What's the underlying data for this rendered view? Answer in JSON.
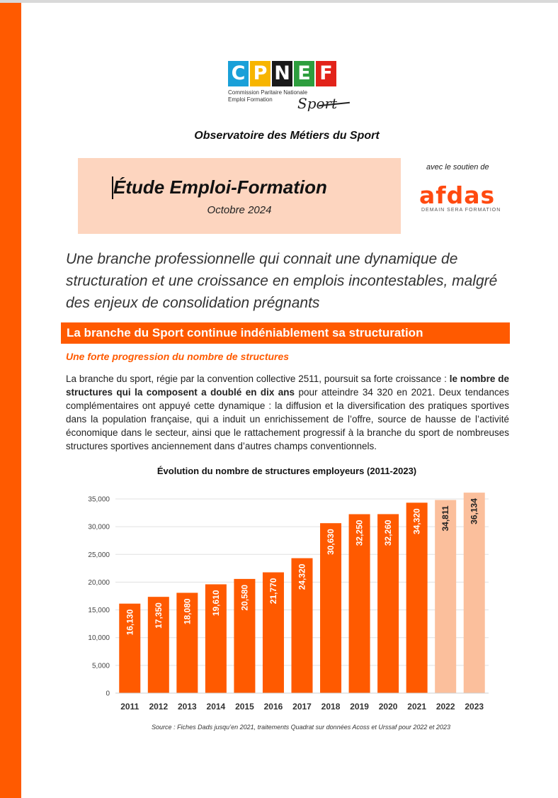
{
  "logo": {
    "letters": [
      "C",
      "P",
      "N",
      "E",
      "F"
    ],
    "tile_colors": [
      "#1aa0d8",
      "#f7b500",
      "#1a1a1a",
      "#2e9e3e",
      "#e2231a"
    ],
    "subtitle_line1": "Commission Paritaire Nationale",
    "subtitle_line2": "Emploi Formation",
    "sport": "Sport"
  },
  "observatoire": "Observatoire des Métiers du Sport",
  "title_box": {
    "title": "Étude Emploi-Formation",
    "date": "Octobre 2024"
  },
  "support": {
    "label": "avec le soutien de",
    "brand": "AFDAS",
    "tagline": "DEMAIN SERA FORMATION"
  },
  "headline": "Une branche professionnelle qui connait une dynamique de structuration et une croissance en emplois incontestables, malgré des enjeux de consolidation prégnants",
  "section_title": "La branche du Sport continue indéniablement sa structuration",
  "subhead": "Une forte progression du nombre de structures",
  "body": {
    "part1": "La branche du sport, régie par la convention collective 2511, poursuit sa forte croissance : ",
    "bold": "le nombre de structures qui la composent a doublé en dix ans",
    "part2": " pour atteindre 34 320 en 2021. Deux tendances complémentaires ont appuyé cette dynamique : la diffusion et la diversification des pratiques sportives dans la population française, qui a induit un enrichissement de l’offre, source de hausse de l’activité économique dans le secteur, ainsi que le rattachement progressif à la branche du sport de nombreuses structures sportives anciennement dans d’autres champs conventionnels."
  },
  "chart_data": {
    "type": "bar",
    "title": "Évolution du nombre de structures employeurs (2011-2023)",
    "categories": [
      "2011",
      "2012",
      "2013",
      "2014",
      "2015",
      "2016",
      "2017",
      "2018",
      "2019",
      "2020",
      "2021",
      "2022",
      "2023"
    ],
    "values": [
      16130,
      17350,
      18080,
      19610,
      20580,
      21770,
      24320,
      30630,
      32250,
      32260,
      34320,
      34811,
      36134
    ],
    "value_labels": [
      "16,130",
      "17,350",
      "18,080",
      "19,610",
      "20,580",
      "21,770",
      "24,320",
      "30,630",
      "32,250",
      "32,260",
      "34,320",
      "34,811",
      "36,134"
    ],
    "estimated": [
      false,
      false,
      false,
      false,
      false,
      false,
      false,
      false,
      false,
      false,
      false,
      true,
      true
    ],
    "y_ticks": [
      0,
      5000,
      10000,
      15000,
      20000,
      25000,
      30000,
      35000
    ],
    "y_tick_labels": [
      "0",
      "5,000",
      "10,000",
      "15,000",
      "20,000",
      "25,000",
      "30,000",
      "35,000"
    ],
    "ylim": [
      0,
      35000
    ],
    "grid": true,
    "colors": {
      "actual": "#ff5a00",
      "estimated": "#fbbf9c",
      "label_actual": "#ffffff",
      "label_estimated": "#222222"
    }
  },
  "source": "Source : Fiches Dads jusqu’en 2021, traitements Quadrat sur données Acoss et Urssaf pour 2022 et 2023"
}
